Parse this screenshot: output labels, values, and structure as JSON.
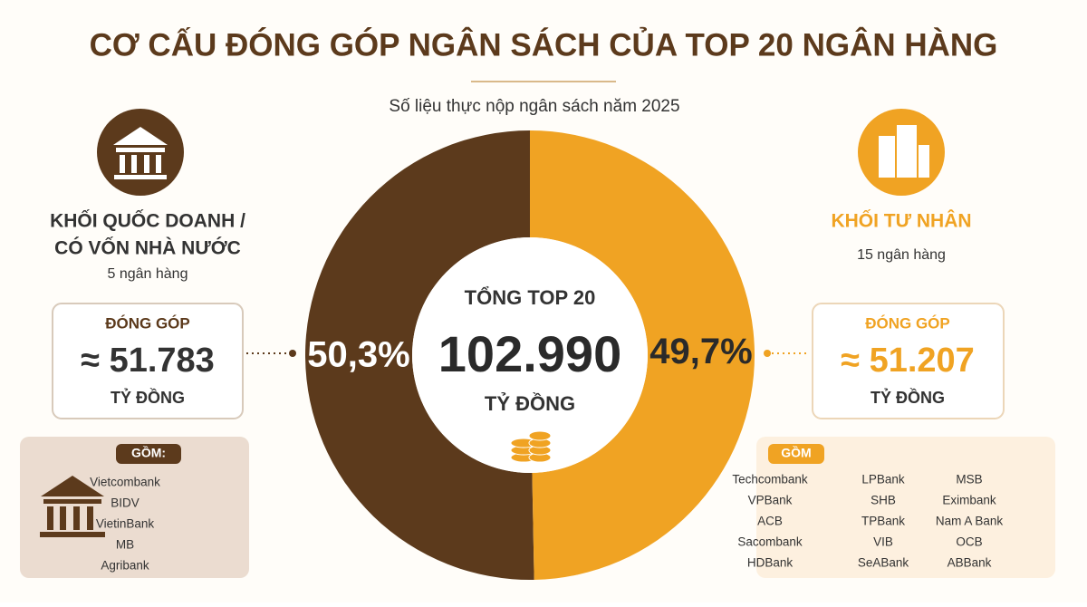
{
  "chart_data": {
    "type": "pie",
    "donut": true,
    "title": "CƠ CẤU ĐÓNG GÓP NGÂN SÁCH CỦA TOP 20 NGÂN HÀNG",
    "subtitle": "Số liệu thực nộp ngân sách năm 2025",
    "categories": [
      "KHỐI QUỐC DOANH / CÓ VỐN NHÀ NƯỚC",
      "KHỐI TƯ NHÂN"
    ],
    "values": [
      50.3,
      49.7
    ],
    "value_labels": [
      "50,3%",
      "49,7%"
    ],
    "colors": [
      "#5c3a1c",
      "#f0a323"
    ],
    "center": {
      "title": "TỔNG TOP 20",
      "total": "102.990",
      "unit": "TỶ ĐỒNG"
    }
  },
  "panels": [
    {
      "name_lines": [
        "KHỐI QUỐC DOANH /",
        "CÓ VỐN NHÀ NƯỚC"
      ],
      "count": "5 ngân hàng",
      "label": "ĐÓNG GÓP",
      "amount": "≈ 51.783",
      "unit": "TỶ ĐỒNG",
      "members_title": "GỒM:",
      "members": [
        "Vietcombank",
        "BIDV",
        "VietinBank",
        "MB",
        "Agribank"
      ]
    },
    {
      "name_lines": [
        "KHỐI TƯ NHÂN"
      ],
      "count": "15 ngân hàng",
      "label": "ĐÓNG GÓP",
      "amount": "≈ 51.207",
      "unit": "TỶ ĐỒNG",
      "members_title": "GỒM",
      "members": [
        "Techcombank",
        "VPBank",
        "ACB",
        "Sacombank",
        "HDBank",
        "LPBank",
        "SHB",
        "TPBank",
        "VIB",
        "SeABank",
        "MSB",
        "Eximbank",
        "Nam A Bank",
        "OCB",
        "ABBank"
      ]
    }
  ]
}
